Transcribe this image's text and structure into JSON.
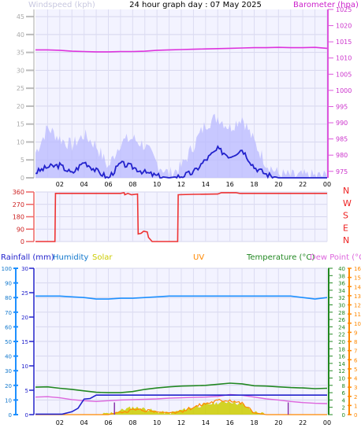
{
  "chart_data": [
    {
      "type": "line",
      "title": "24 hour graph day : 07 May 2025",
      "left_axis_label": "Windspeed (kph)",
      "right_axis_label": "Barometer (hpa)",
      "x_ticks": [
        "02",
        "04",
        "06",
        "08",
        "10",
        "12",
        "14",
        "16",
        "18",
        "20",
        "22",
        "00"
      ],
      "left_ticks": [
        "0",
        "5",
        "10",
        "15",
        "20",
        "25",
        "30",
        "35",
        "40",
        "45"
      ],
      "right_ticks": [
        "975",
        "980",
        "985",
        "990",
        "995",
        "1000",
        "1005",
        "1010",
        "1015",
        "1020",
        "1025"
      ],
      "ylim_left": [
        0,
        47
      ],
      "ylim_right": [
        973,
        1025
      ],
      "x": [
        0,
        1,
        2,
        3,
        4,
        5,
        6,
        7,
        8,
        9,
        10,
        11,
        12,
        13,
        14,
        15,
        16,
        17,
        18,
        19,
        20,
        21,
        22,
        23,
        24
      ],
      "series": [
        {
          "key": "barometer",
          "axis": "right",
          "color": "#dd33dd",
          "values": [
            1012.5,
            1012.5,
            1012.4,
            1012.1,
            1012.0,
            1011.9,
            1011.9,
            1012.0,
            1012.0,
            1012.1,
            1012.4,
            1012.5,
            1012.6,
            1012.7,
            1012.8,
            1012.9,
            1013.0,
            1013.1,
            1013.2,
            1013.2,
            1013.3,
            1013.2,
            1013.2,
            1013.3,
            1013.0
          ]
        },
        {
          "key": "wind_avg",
          "axis": "left",
          "color": "#2222cc",
          "values": [
            1.5,
            3,
            3.5,
            1.2,
            4.5,
            2,
            0,
            4,
            3,
            1.5,
            0.5,
            0,
            0.5,
            1.5,
            5,
            8,
            6,
            8,
            3,
            1,
            0,
            0,
            0,
            0,
            0
          ]
        },
        {
          "key": "wind_gust",
          "axis": "left",
          "color": "#b9b9ff",
          "values": [
            7,
            14,
            11,
            9,
            12,
            9,
            3,
            10,
            11,
            9,
            4,
            1,
            3,
            9,
            15,
            17,
            14,
            17,
            10,
            4,
            1,
            0.5,
            0.5,
            0.5,
            0.5
          ]
        }
      ]
    },
    {
      "type": "line",
      "title": "",
      "left_ticks": [
        "0",
        "90",
        "180",
        "270",
        "360"
      ],
      "right_labels": [
        "N",
        "W",
        "S",
        "E",
        "N"
      ],
      "ylim": [
        0,
        360
      ],
      "series": [
        {
          "key": "wind_direction",
          "color": "#ee3333",
          "points": [
            [
              0,
              0
            ],
            [
              1.6,
              0
            ],
            [
              1.65,
              350
            ],
            [
              6.3,
              350
            ],
            [
              7,
              350
            ],
            [
              7.3,
              355
            ],
            [
              7.35,
              340
            ],
            [
              7.6,
              350
            ],
            [
              7.9,
              340
            ],
            [
              8.4,
              345
            ],
            [
              8.45,
              55
            ],
            [
              8.7,
              60
            ],
            [
              8.9,
              75
            ],
            [
              9.2,
              70
            ],
            [
              9.3,
              30
            ],
            [
              9.6,
              0
            ],
            [
              11.7,
              0
            ],
            [
              11.75,
              340
            ],
            [
              13,
              343
            ],
            [
              15,
              345
            ],
            [
              15.3,
              355
            ],
            [
              16.5,
              355
            ],
            [
              16.8,
              350
            ],
            [
              24,
              350
            ]
          ]
        }
      ]
    },
    {
      "type": "line",
      "title": "",
      "legend": [
        "Rainfall (mm)",
        "Humidity",
        "Solar",
        "UV",
        "Temperature (°C)",
        "Dew Point (°C)"
      ],
      "legend_colors": [
        "#2222cc",
        "#1177cc",
        "#cccc00",
        "#ff8800",
        "#228822",
        "#dd66dd"
      ],
      "rain_ticks": [
        "0",
        "5",
        "10",
        "15",
        "20",
        "25",
        "30"
      ],
      "humidity_ticks": [
        "0",
        "10",
        "20",
        "30",
        "40",
        "50",
        "60",
        "70",
        "80",
        "90",
        "100"
      ],
      "temp_ticks": [
        "0",
        "2",
        "4",
        "6",
        "8",
        "10",
        "12",
        "14",
        "16",
        "18",
        "20",
        "22",
        "24",
        "26",
        "28",
        "30",
        "32",
        "34",
        "36",
        "38",
        "40"
      ],
      "uv_ticks": [
        "0",
        "1",
        "2",
        "3",
        "4",
        "5",
        "6",
        "7",
        "8",
        "9",
        "10",
        "11",
        "12",
        "13",
        "14",
        "15",
        "16"
      ],
      "ylim_rain": [
        0,
        30
      ],
      "ylim_humidity": [
        0,
        100
      ],
      "ylim_temp": [
        0,
        40
      ],
      "ylim_uv": [
        0,
        16
      ],
      "x": [
        0,
        1,
        2,
        3,
        4,
        5,
        6,
        7,
        8,
        9,
        10,
        11,
        12,
        13,
        14,
        15,
        16,
        17,
        18,
        19,
        20,
        21,
        22,
        23,
        24
      ],
      "series": [
        {
          "key": "humidity",
          "axis": "humidity",
          "color": "#1e90ff",
          "values": [
            81,
            81,
            81,
            80.5,
            80,
            79,
            79,
            79.5,
            79.5,
            80,
            80.5,
            81,
            81,
            81,
            81,
            81,
            81,
            81,
            81,
            81,
            81,
            81,
            80,
            79,
            80
          ]
        },
        {
          "key": "temperature",
          "axis": "temp",
          "color": "#228822",
          "values": [
            7.5,
            7.6,
            7.2,
            6.9,
            6.5,
            6.1,
            6.0,
            6.0,
            6.3,
            6.9,
            7.3,
            7.6,
            7.8,
            7.9,
            8.0,
            8.3,
            8.6,
            8.4,
            7.9,
            7.8,
            7.6,
            7.4,
            7.3,
            7.1,
            7.2
          ]
        },
        {
          "key": "dew_point",
          "axis": "temp",
          "color": "#dd66dd",
          "values": [
            4.8,
            4.9,
            4.6,
            4.1,
            3.8,
            3.6,
            3.8,
            4.0,
            4.1,
            4.2,
            4.3,
            4.5,
            4.6,
            4.7,
            4.8,
            5.0,
            5.5,
            5.3,
            4.8,
            4.3,
            4.0,
            3.6,
            3.3,
            3.1,
            3.0
          ]
        },
        {
          "key": "rainfall",
          "axis": "rain",
          "color": "#2222cc",
          "points": [
            [
              0,
              0.1
            ],
            [
              2.2,
              0.1
            ],
            [
              3,
              0.6
            ],
            [
              3.5,
              1.3
            ],
            [
              4,
              3.2
            ],
            [
              4.5,
              3.3
            ],
            [
              5,
              4.0
            ],
            [
              6,
              4.0
            ],
            [
              24,
              4.0
            ]
          ]
        },
        {
          "key": "solar",
          "axis": "humidity",
          "color": "#cccc00",
          "values": [
            0,
            0,
            0,
            0,
            0,
            0,
            0.5,
            3,
            5,
            4,
            2,
            1,
            3,
            5,
            7,
            8,
            9,
            7,
            2,
            0,
            0,
            0,
            0,
            0,
            0
          ]
        },
        {
          "key": "uv",
          "axis": "uv",
          "color": "#ff8800",
          "values": [
            0,
            0,
            0,
            0,
            0,
            0,
            0,
            0.3,
            0.5,
            0.5,
            0.3,
            0.2,
            0.4,
            0.8,
            1.2,
            1.5,
            1.6,
            1.2,
            0.2,
            0,
            0,
            0,
            0,
            0,
            0
          ]
        }
      ]
    }
  ]
}
